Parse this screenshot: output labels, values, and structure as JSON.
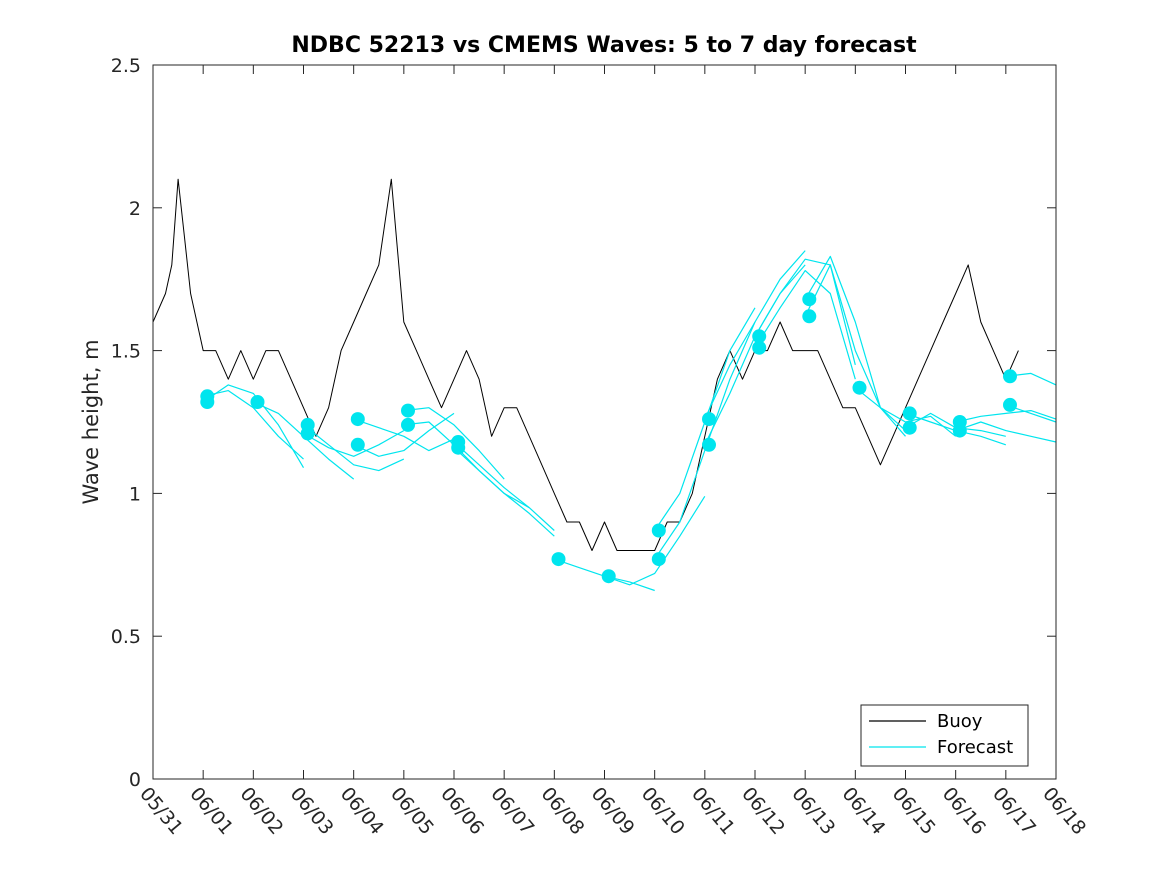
{
  "chart_data": {
    "type": "line",
    "title": "NDBC 52213 vs CMEMS Waves: 5 to 7 day forecast",
    "xlabel": "",
    "ylabel": "Wave height, m",
    "xlim": [
      "05/31",
      "06/18"
    ],
    "ylim": [
      0,
      2.5
    ],
    "x_ticks": [
      "05/31",
      "06/01",
      "06/02",
      "06/03",
      "06/04",
      "06/05",
      "06/06",
      "06/07",
      "06/08",
      "06/09",
      "06/10",
      "06/11",
      "06/12",
      "06/13",
      "06/14",
      "06/15",
      "06/16",
      "06/17",
      "06/18"
    ],
    "y_ticks": [
      "0",
      "0.5",
      "1",
      "1.5",
      "2",
      "2.5"
    ],
    "grid": false,
    "legend_position": "bottom-right",
    "colors": {
      "buoy": "#000000",
      "forecast": "#00e5ee"
    },
    "legend": [
      {
        "label": "Buoy",
        "color": "#000000"
      },
      {
        "label": "Forecast",
        "color": "#00e5ee"
      }
    ],
    "series": [
      {
        "name": "Buoy",
        "x": [
          "05/31 00:00",
          "05/31 06:00",
          "05/31 09:00",
          "05/31 12:00",
          "05/31 15:00",
          "05/31 18:00",
          "06/01 00:00",
          "06/01 06:00",
          "06/01 12:00",
          "06/01 18:00",
          "06/02 00:00",
          "06/02 06:00",
          "06/02 12:00",
          "06/02 18:00",
          "06/03 00:00",
          "06/03 06:00",
          "06/03 12:00",
          "06/03 18:00",
          "06/04 00:00",
          "06/04 06:00",
          "06/04 12:00",
          "06/04 18:00",
          "06/05 00:00",
          "06/05 06:00",
          "06/05 12:00",
          "06/05 18:00",
          "06/06 00:00",
          "06/06 06:00",
          "06/06 12:00",
          "06/06 18:00",
          "06/07 00:00",
          "06/07 06:00",
          "06/07 12:00",
          "06/07 18:00",
          "06/08 00:00",
          "06/08 06:00",
          "06/08 12:00",
          "06/08 18:00",
          "06/09 00:00",
          "06/09 06:00",
          "06/09 12:00",
          "06/09 18:00",
          "06/10 00:00",
          "06/10 06:00",
          "06/10 12:00",
          "06/10 18:00",
          "06/11 00:00",
          "06/11 06:00",
          "06/11 12:00",
          "06/11 18:00",
          "06/12 00:00",
          "06/12 06:00",
          "06/12 12:00",
          "06/12 18:00",
          "06/13 00:00",
          "06/13 06:00",
          "06/13 12:00",
          "06/13 18:00",
          "06/14 00:00",
          "06/14 06:00",
          "06/14 12:00",
          "06/14 18:00",
          "06/15 00:00",
          "06/15 06:00",
          "06/15 12:00",
          "06/15 18:00",
          "06/16 00:00",
          "06/16 06:00",
          "06/16 12:00",
          "06/16 18:00",
          "06/17 00:00",
          "06/17 06:00"
        ],
        "values": [
          1.6,
          1.7,
          1.8,
          2.1,
          1.9,
          1.7,
          1.5,
          1.5,
          1.4,
          1.5,
          1.4,
          1.5,
          1.5,
          1.4,
          1.3,
          1.2,
          1.3,
          1.5,
          1.6,
          1.7,
          1.8,
          2.1,
          1.6,
          1.5,
          1.4,
          1.3,
          1.4,
          1.5,
          1.4,
          1.2,
          1.3,
          1.3,
          1.2,
          1.1,
          1.0,
          0.9,
          0.9,
          0.8,
          0.9,
          0.8,
          0.8,
          0.8,
          0.8,
          0.9,
          0.9,
          1.0,
          1.2,
          1.4,
          1.5,
          1.4,
          1.5,
          1.5,
          1.6,
          1.5,
          1.5,
          1.5,
          1.4,
          1.3,
          1.3,
          1.2,
          1.1,
          1.2,
          1.3,
          1.4,
          1.5,
          1.6,
          1.7,
          1.8,
          1.6,
          1.5,
          1.4,
          1.5
        ]
      },
      {
        "name": "Forecast",
        "runs": [
          {
            "x": [
              "06/01 00:00",
              "06/01 12:00",
              "06/02 00:00",
              "06/02 12:00",
              "06/03 00:00"
            ],
            "values": [
              1.34,
              1.36,
              1.3,
              1.2,
              1.12
            ]
          },
          {
            "x": [
              "06/01 00:00",
              "06/01 12:00",
              "06/02 00:00",
              "06/02 12:00",
              "06/03 00:00"
            ],
            "values": [
              1.32,
              1.38,
              1.35,
              1.24,
              1.09
            ]
          },
          {
            "x": [
              "06/02 00:00",
              "06/02 12:00",
              "06/03 00:00",
              "06/03 12:00",
              "06/04 00:00"
            ],
            "values": [
              1.32,
              1.28,
              1.2,
              1.12,
              1.05
            ]
          },
          {
            "x": [
              "06/03 00:00",
              "06/03 12:00",
              "06/04 00:00",
              "06/04 12:00",
              "06/05 00:00"
            ],
            "values": [
              1.24,
              1.17,
              1.1,
              1.08,
              1.12
            ]
          },
          {
            "x": [
              "06/03 00:00",
              "06/03 12:00",
              "06/04 00:00",
              "06/04 12:00",
              "06/05 00:00"
            ],
            "values": [
              1.21,
              1.16,
              1.13,
              1.17,
              1.22
            ]
          },
          {
            "x": [
              "06/04 00:00",
              "06/04 12:00",
              "06/05 00:00",
              "06/05 12:00",
              "06/06 00:00"
            ],
            "values": [
              1.26,
              1.23,
              1.2,
              1.15,
              1.19
            ]
          },
          {
            "x": [
              "06/04 00:00",
              "06/04 12:00",
              "06/05 00:00",
              "06/05 12:00",
              "06/06 00:00"
            ],
            "values": [
              1.17,
              1.13,
              1.15,
              1.22,
              1.28
            ]
          },
          {
            "x": [
              "06/05 00:00",
              "06/05 12:00",
              "06/06 00:00",
              "06/06 12:00",
              "06/07 00:00"
            ],
            "values": [
              1.29,
              1.3,
              1.24,
              1.15,
              1.05
            ]
          },
          {
            "x": [
              "06/05 00:00",
              "06/05 12:00",
              "06/06 00:00",
              "06/06 12:00",
              "06/07 00:00",
              "06/07 12:00"
            ],
            "values": [
              1.24,
              1.25,
              1.17,
              1.08,
              1.0,
              0.95
            ]
          },
          {
            "x": [
              "06/06 00:00",
              "06/06 12:00",
              "06/07 00:00",
              "06/07 12:00",
              "06/08 00:00"
            ],
            "values": [
              1.18,
              1.1,
              1.02,
              0.95,
              0.87
            ]
          },
          {
            "x": [
              "06/06 00:00",
              "06/06 12:00",
              "06/07 00:00",
              "06/07 12:00",
              "06/08 00:00"
            ],
            "values": [
              1.16,
              1.08,
              1.0,
              0.93,
              0.85
            ]
          },
          {
            "x": [
              "06/08 00:00",
              "06/08 12:00",
              "06/09 00:00",
              "06/09 12:00",
              "06/10 00:00"
            ],
            "values": [
              0.77,
              0.74,
              0.71,
              0.69,
              0.66
            ]
          },
          {
            "x": [
              "06/09 00:00",
              "06/09 12:00",
              "06/10 00:00",
              "06/10 12:00",
              "06/11 00:00"
            ],
            "values": [
              0.71,
              0.68,
              0.72,
              0.85,
              0.99
            ]
          },
          {
            "x": [
              "06/10 00:00",
              "06/10 12:00",
              "06/11 00:00",
              "06/11 12:00",
              "06/12 00:00"
            ],
            "values": [
              0.87,
              1.0,
              1.25,
              1.5,
              1.65
            ]
          },
          {
            "x": [
              "06/10 00:00",
              "06/10 12:00",
              "06/11 00:00",
              "06/11 12:00",
              "06/12 00:00"
            ],
            "values": [
              0.77,
              0.9,
              1.15,
              1.4,
              1.6
            ]
          },
          {
            "x": [
              "06/11 00:00",
              "06/11 12:00",
              "06/12 00:00",
              "06/12 12:00",
              "06/13 00:00"
            ],
            "values": [
              1.26,
              1.45,
              1.6,
              1.75,
              1.85
            ]
          },
          {
            "x": [
              "06/11 00:00",
              "06/11 12:00",
              "06/12 00:00",
              "06/12 12:00",
              "06/13 00:00"
            ],
            "values": [
              1.17,
              1.35,
              1.55,
              1.7,
              1.8
            ]
          },
          {
            "x": [
              "06/12 00:00",
              "06/12 12:00",
              "06/13 00:00",
              "06/13 12:00",
              "06/14 00:00"
            ],
            "values": [
              1.55,
              1.7,
              1.82,
              1.8,
              1.45
            ]
          },
          {
            "x": [
              "06/12 00:00",
              "06/12 12:00",
              "06/13 00:00",
              "06/13 12:00",
              "06/14 00:00"
            ],
            "values": [
              1.51,
              1.65,
              1.78,
              1.7,
              1.4
            ]
          },
          {
            "x": [
              "06/13 00:00",
              "06/13 12:00",
              "06/14 00:00",
              "06/14 12:00",
              "06/15 00:00"
            ],
            "values": [
              1.68,
              1.83,
              1.6,
              1.3,
              1.2
            ]
          },
          {
            "x": [
              "06/13 00:00",
              "06/13 12:00",
              "06/14 00:00",
              "06/14 12:00",
              "06/15 00:00"
            ],
            "values": [
              1.62,
              1.8,
              1.5,
              1.3,
              1.22
            ]
          },
          {
            "x": [
              "06/14 00:00",
              "06/14 12:00",
              "06/15 00:00",
              "06/15 12:00",
              "06/16 00:00"
            ],
            "values": [
              1.37,
              1.3,
              1.25,
              1.27,
              1.2
            ]
          },
          {
            "x": [
              "06/15 00:00",
              "06/15 12:00",
              "06/16 00:00",
              "06/16 12:00",
              "06/17 00:00"
            ],
            "values": [
              1.28,
              1.25,
              1.22,
              1.2,
              1.17
            ]
          },
          {
            "x": [
              "06/15 00:00",
              "06/15 12:00",
              "06/16 00:00",
              "06/16 12:00",
              "06/17 00:00"
            ],
            "values": [
              1.23,
              1.28,
              1.23,
              1.22,
              1.2
            ]
          },
          {
            "x": [
              "06/16 00:00",
              "06/16 12:00",
              "06/17 00:00",
              "06/17 12:00",
              "06/18 00:00"
            ],
            "values": [
              1.25,
              1.27,
              1.28,
              1.29,
              1.26
            ]
          },
          {
            "x": [
              "06/16 00:00",
              "06/16 12:00",
              "06/17 00:00",
              "06/17 12:00",
              "06/18 00:00"
            ],
            "values": [
              1.22,
              1.25,
              1.22,
              1.2,
              1.18
            ]
          },
          {
            "x": [
              "06/17 00:00",
              "06/17 12:00",
              "06/18 00:00"
            ],
            "values": [
              1.41,
              1.42,
              1.38
            ]
          },
          {
            "x": [
              "06/17 00:00",
              "06/17 12:00",
              "06/18 00:00"
            ],
            "values": [
              1.31,
              1.28,
              1.25
            ]
          }
        ],
        "markers": {
          "x": [
            "06/01 02:00",
            "06/01 02:00",
            "06/02 02:00",
            "06/03 02:00",
            "06/03 02:00",
            "06/04 02:00",
            "06/04 02:00",
            "06/05 02:00",
            "06/05 02:00",
            "06/06 02:00",
            "06/06 02:00",
            "06/08 02:00",
            "06/09 02:00",
            "06/10 02:00",
            "06/10 02:00",
            "06/11 02:00",
            "06/11 02:00",
            "06/12 02:00",
            "06/12 02:00",
            "06/13 02:00",
            "06/13 02:00",
            "06/14 02:00",
            "06/15 02:00",
            "06/15 02:00",
            "06/16 02:00",
            "06/16 02:00",
            "06/17 02:00",
            "06/17 02:00"
          ],
          "values": [
            1.34,
            1.32,
            1.32,
            1.24,
            1.21,
            1.26,
            1.17,
            1.29,
            1.24,
            1.18,
            1.16,
            0.77,
            0.71,
            0.87,
            0.77,
            1.26,
            1.17,
            1.55,
            1.51,
            1.68,
            1.62,
            1.37,
            1.28,
            1.23,
            1.25,
            1.22,
            1.41,
            1.31
          ]
        }
      }
    ]
  }
}
